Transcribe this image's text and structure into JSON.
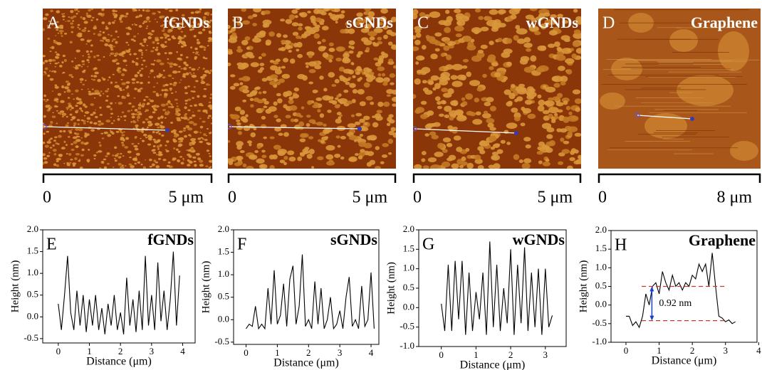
{
  "images": [
    {
      "label": "A",
      "title": "fGNDs",
      "scale_start": "0",
      "scale_end": "5 μm"
    },
    {
      "label": "B",
      "title": "sGNDs",
      "scale_start": "0",
      "scale_end": "5 μm"
    },
    {
      "label": "C",
      "title": "wGNDs",
      "scale_start": "0",
      "scale_end": "5 μm"
    },
    {
      "label": "D",
      "title": "Graphene",
      "scale_start": "0",
      "scale_end": "8 μm"
    }
  ],
  "chart_data": [
    {
      "type": "line",
      "panel_label": "E",
      "title": "fGNDs",
      "x_label": "Distance (μm)",
      "y_label": "Height (nm)",
      "xlim": [
        -0.5,
        4.4
      ],
      "ylim": [
        -0.6,
        2.0
      ],
      "xticks": [
        0,
        1,
        2,
        3,
        4
      ],
      "yticks": [
        -0.5,
        {
          "value": 0,
          "label": "0.0"
        },
        {
          "value": 0.5,
          "label": "0.5"
        },
        {
          "value": 1,
          "label": "1.0"
        },
        {
          "value": 1.5,
          "label": "1.5"
        },
        {
          "value": 2,
          "label": "2.0"
        }
      ],
      "series": [
        {
          "color": "#000000",
          "x": [
            0,
            0.1,
            0.2,
            0.3,
            0.4,
            0.5,
            0.6,
            0.7,
            0.8,
            0.9,
            1.0,
            1.1,
            1.2,
            1.3,
            1.4,
            1.5,
            1.6,
            1.7,
            1.8,
            1.9,
            2.0,
            2.1,
            2.2,
            2.3,
            2.4,
            2.5,
            2.6,
            2.7,
            2.8,
            2.9,
            3.0,
            3.1,
            3.2,
            3.3,
            3.4,
            3.5,
            3.6,
            3.7,
            3.8,
            3.9
          ],
          "values": [
            0.3,
            -0.3,
            0.5,
            1.4,
            0.1,
            -0.3,
            0.6,
            -0.2,
            0.5,
            -0.35,
            0.4,
            -0.2,
            0.5,
            -0.3,
            0.2,
            -0.4,
            0.3,
            -0.2,
            0.5,
            -0.3,
            0.1,
            -0.4,
            0.9,
            -0.2,
            0.4,
            -0.35,
            0.6,
            -0.3,
            1.4,
            -0.2,
            0.5,
            -0.3,
            1.25,
            -0.1,
            0.6,
            -0.3,
            0.4,
            1.5,
            -0.2,
            0.95
          ]
        }
      ]
    },
    {
      "type": "line",
      "panel_label": "F",
      "title": "sGNDs",
      "x_label": "Distance (μm)",
      "y_label": "Height (nm)",
      "xlim": [
        -0.4,
        4.25
      ],
      "ylim": [
        -0.55,
        2.0
      ],
      "xticks": [
        0,
        1,
        2,
        3,
        4
      ],
      "yticks": [
        -0.5,
        {
          "value": 0,
          "label": "0.0"
        },
        {
          "value": 0.5,
          "label": "0.5"
        },
        {
          "value": 1,
          "label": "1.0"
        },
        {
          "value": 1.5,
          "label": "1.5"
        },
        {
          "value": 2,
          "label": "2.0"
        }
      ],
      "series": [
        {
          "color": "#000000",
          "x": [
            0,
            0.1,
            0.2,
            0.3,
            0.4,
            0.5,
            0.6,
            0.7,
            0.8,
            0.9,
            1.0,
            1.1,
            1.2,
            1.3,
            1.4,
            1.5,
            1.6,
            1.7,
            1.8,
            1.9,
            2.0,
            2.1,
            2.2,
            2.3,
            2.4,
            2.5,
            2.6,
            2.7,
            2.8,
            2.9,
            3.0,
            3.1,
            3.2,
            3.3,
            3.4,
            3.5,
            3.6,
            3.7,
            3.8,
            3.9,
            4.0,
            4.1
          ],
          "values": [
            -0.2,
            -0.1,
            -0.15,
            0.3,
            -0.2,
            -0.1,
            -0.2,
            0.7,
            -0.1,
            1.1,
            -0.1,
            0.1,
            0.8,
            -0.15,
            0.9,
            1.2,
            -0.1,
            0.3,
            1.45,
            -0.15,
            0.0,
            -0.2,
            0.85,
            -0.1,
            0.7,
            -0.2,
            0.0,
            0.5,
            -0.2,
            -0.1,
            0.2,
            -0.2,
            0.5,
            0.95,
            -0.15,
            0.0,
            -0.2,
            0.75,
            -0.15,
            0.0,
            1.05,
            -0.2
          ]
        }
      ]
    },
    {
      "type": "line",
      "panel_label": "G",
      "title": "wGNDs",
      "x_label": "Distance (μm)",
      "y_label": "Height (nm)",
      "xlim": [
        -0.65,
        3.6
      ],
      "ylim": [
        -1.0,
        2.0
      ],
      "xticks": [
        0,
        1,
        2,
        3
      ],
      "yticks": [
        {
          "value": -1,
          "label": "-1.0"
        },
        -0.5,
        {
          "value": 0,
          "label": "0.0"
        },
        {
          "value": 0.5,
          "label": "0.5"
        },
        {
          "value": 1,
          "label": "1.0"
        },
        {
          "value": 1.5,
          "label": "1.5"
        },
        {
          "value": 2,
          "label": "2.0"
        }
      ],
      "series": [
        {
          "color": "#000000",
          "x": [
            0,
            0.1,
            0.2,
            0.3,
            0.4,
            0.5,
            0.6,
            0.7,
            0.8,
            0.9,
            1.0,
            1.1,
            1.2,
            1.3,
            1.4,
            1.5,
            1.6,
            1.7,
            1.8,
            1.9,
            2.0,
            2.1,
            2.2,
            2.3,
            2.4,
            2.5,
            2.6,
            2.7,
            2.8,
            2.9,
            3.0,
            3.1,
            3.2
          ],
          "values": [
            0.1,
            -0.6,
            1.1,
            -0.6,
            1.2,
            -0.3,
            1.2,
            -0.7,
            0.9,
            -0.6,
            0.4,
            -0.3,
            0.9,
            -0.7,
            1.7,
            -0.5,
            1.1,
            -0.6,
            0.5,
            -0.4,
            1.5,
            -0.7,
            1.1,
            -0.4,
            1.55,
            -0.6,
            0.9,
            -0.5,
            1.0,
            -0.7,
            1.0,
            -0.5,
            -0.2
          ]
        }
      ]
    },
    {
      "type": "line",
      "panel_label": "H",
      "title": "Graphene",
      "x_label": "Distance (μm)",
      "y_label": "Height (nm)",
      "xlim": [
        -0.45,
        3.95
      ],
      "ylim": [
        -1.0,
        2.0
      ],
      "xticks": [
        0,
        1,
        2,
        3,
        4
      ],
      "yticks": [
        {
          "value": -1,
          "label": "-1.0"
        },
        -0.5,
        {
          "value": 0,
          "label": "0.0"
        },
        {
          "value": 0.5,
          "label": "0.5"
        },
        {
          "value": 1,
          "label": "1.0"
        },
        {
          "value": 1.5,
          "label": "1.5"
        },
        {
          "value": 2,
          "label": "2.0"
        }
      ],
      "reference_lines": [
        0.5,
        -0.42
      ],
      "annotation": "0.92 nm",
      "series": [
        {
          "color": "#000000",
          "x": [
            0,
            0.1,
            0.2,
            0.3,
            0.4,
            0.5,
            0.6,
            0.7,
            0.8,
            0.9,
            1.0,
            1.1,
            1.2,
            1.3,
            1.4,
            1.5,
            1.6,
            1.7,
            1.8,
            1.9,
            2.0,
            2.1,
            2.2,
            2.3,
            2.4,
            2.5,
            2.6,
            2.7,
            2.8,
            2.9,
            3.0,
            3.1,
            3.2,
            3.3
          ],
          "values": [
            -0.3,
            -0.3,
            -0.55,
            -0.45,
            -0.6,
            -0.3,
            0.3,
            0.0,
            0.5,
            0.6,
            0.3,
            0.9,
            0.6,
            0.4,
            0.8,
            0.5,
            0.6,
            0.4,
            0.6,
            0.5,
            0.8,
            0.7,
            1.1,
            0.9,
            1.1,
            0.5,
            1.4,
            0.5,
            -0.3,
            -0.35,
            -0.45,
            -0.4,
            -0.5,
            -0.45
          ]
        }
      ]
    }
  ]
}
